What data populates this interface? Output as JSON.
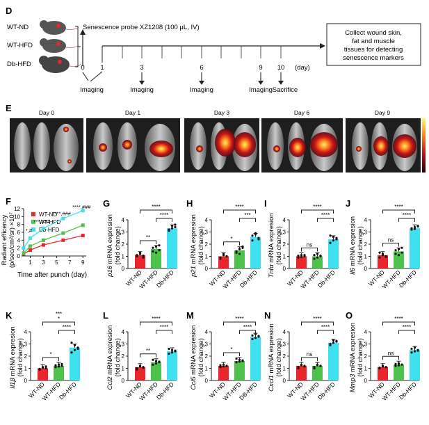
{
  "panel_d": {
    "letter": "D",
    "groups": [
      "WT-ND",
      "WT-HFD",
      "Db-HFD"
    ],
    "probe": "Senescence probe XZ1208 (100 μL, IV)",
    "days": [
      "0",
      "1",
      "3",
      "6",
      "9",
      "10"
    ],
    "day_unit": "(day)",
    "imaging": "Imaging",
    "sacrifice": "Sacrifice",
    "collect_lines": [
      "Collect wound skin,",
      "fat   and   muscle",
      "tissues for detecting",
      "senescence markers"
    ]
  },
  "panel_e": {
    "letter": "E",
    "day_labels": [
      "Day 0",
      "Day 1",
      "Day 3",
      "Day 6",
      "Day 9"
    ]
  },
  "panel_f": {
    "letter": "F",
    "ylabel_1": "Radiant efficency",
    "ylabel_2": "(p/sec/cm²/sr) ×10⁷",
    "xlabel": "Time after punch (day)",
    "legend": [
      "WT-ND",
      "WT-HFD",
      "Db-HFD"
    ],
    "colors": [
      "#e8262b",
      "#4ec24a",
      "#3fe0f0"
    ],
    "sig": [
      "*,#",
      "***,###",
      "****,###",
      "****,###"
    ]
  },
  "chart_data": [
    {
      "type": "line",
      "panel": "F",
      "x": [
        0,
        1,
        3,
        6,
        9
      ],
      "series": [
        {
          "name": "WT-ND",
          "values": [
            0.5,
            1.5,
            2.8,
            4.0,
            5.2
          ]
        },
        {
          "name": "WT-HFD",
          "values": [
            0.7,
            2.5,
            4.0,
            5.8,
            7.8
          ]
        },
        {
          "name": "Db-HFD",
          "values": [
            2.0,
            4.5,
            7.0,
            9.5,
            11.5
          ]
        }
      ],
      "xticks": [
        "1",
        "3",
        "5",
        "7",
        "9"
      ],
      "yticks": [
        "0",
        "2",
        "4",
        "6",
        "8",
        "10",
        "12"
      ],
      "ylim": [
        0,
        12
      ],
      "xlim": [
        0,
        9.5
      ],
      "xlabel": "Time after punch (day)",
      "ylabel": "Radiant efficency (p/sec/cm²/sr) ×10⁷"
    },
    {
      "type": "bar",
      "panel": "G",
      "gene": "p16",
      "categories": [
        "WT-ND",
        "WT-HFD",
        "Db-HFD"
      ],
      "values": [
        1.1,
        1.6,
        3.3
      ],
      "points": [
        [
          1.0,
          1.2,
          0.9,
          1.1,
          1.3,
          1.05
        ],
        [
          1.4,
          1.8,
          1.5,
          1.7,
          1.3,
          1.9
        ],
        [
          3.1,
          3.5,
          3.6,
          3.2,
          3.3,
          3.4
        ]
      ],
      "sig": [
        "**",
        "****",
        "****"
      ],
      "ylim": [
        0,
        4
      ]
    },
    {
      "type": "bar",
      "panel": "H",
      "gene": "p21",
      "categories": [
        "WT-ND",
        "WT-HFD",
        "Db-HFD"
      ],
      "values": [
        1.0,
        1.5,
        2.6
      ],
      "points": [
        [
          0.9,
          1.1,
          1.0,
          0.8,
          1.2,
          1.0
        ],
        [
          1.3,
          1.6,
          1.8,
          1.4,
          1.2,
          1.7
        ],
        [
          2.3,
          2.9,
          2.5,
          2.7,
          2.8,
          2.4
        ]
      ],
      "sig": [
        "*",
        "****",
        "***"
      ],
      "ylim": [
        0,
        4
      ]
    },
    {
      "type": "bar",
      "panel": "I",
      "gene": "Tnfα",
      "categories": [
        "WT-ND",
        "WT-HFD",
        "Db-HFD"
      ],
      "values": [
        1.0,
        1.0,
        2.4
      ],
      "points": [
        [
          0.9,
          1.1,
          1.0,
          1.05,
          0.95,
          1.1
        ],
        [
          0.8,
          1.2,
          1.0,
          1.1,
          0.9,
          1.05
        ],
        [
          2.1,
          2.6,
          2.4,
          2.7,
          2.3,
          2.5
        ]
      ],
      "sig": [
        "ns",
        "****",
        "****"
      ],
      "ylim": [
        0,
        4
      ]
    },
    {
      "type": "bar",
      "panel": "J",
      "gene": "Il6",
      "categories": [
        "WT-ND",
        "WT-HFD",
        "Db-HFD"
      ],
      "values": [
        1.1,
        1.4,
        3.3
      ],
      "points": [
        [
          0.9,
          1.2,
          1.0,
          1.3,
          1.1,
          0.95
        ],
        [
          1.2,
          1.6,
          1.3,
          1.5,
          1.1,
          1.7
        ],
        [
          3.2,
          3.4,
          3.5,
          3.3,
          3.25,
          3.45
        ]
      ],
      "sig": [
        "ns",
        "****",
        "****"
      ],
      "ylim": [
        0,
        4
      ]
    },
    {
      "type": "bar",
      "panel": "K",
      "gene": "Il1β",
      "categories": [
        "WT-ND",
        "WT-HFD",
        "Db-HFD"
      ],
      "values": [
        1.0,
        1.2,
        2.7
      ],
      "points": [
        [
          0.9,
          1.1,
          1.0,
          0.95,
          1.05,
          1.15
        ],
        [
          1.1,
          1.3,
          1.2,
          1.25,
          1.15,
          1.35
        ],
        [
          2.3,
          2.9,
          2.7,
          3.1,
          2.5,
          2.6
        ]
      ],
      "sig": [
        "*",
        "***\n*",
        "****"
      ],
      "ylim": [
        0,
        4
      ]
    },
    {
      "type": "bar",
      "panel": "L",
      "gene": "Ccl2",
      "categories": [
        "WT-ND",
        "WT-HFD",
        "Db-HFD"
      ],
      "values": [
        1.1,
        1.5,
        2.4
      ],
      "points": [
        [
          1.0,
          1.2,
          1.1,
          0.9,
          1.15,
          1.05
        ],
        [
          1.3,
          1.6,
          1.5,
          1.7,
          1.4,
          1.55
        ],
        [
          2.2,
          2.5,
          2.4,
          2.6,
          2.3,
          2.45
        ]
      ],
      "sig": [
        "**",
        "****",
        "****"
      ],
      "ylim": [
        0,
        4
      ]
    },
    {
      "type": "bar",
      "panel": "M",
      "gene": "Ccl5",
      "categories": [
        "WT-ND",
        "WT-HFD",
        "DB-HFD"
      ],
      "values": [
        1.2,
        1.6,
        3.6
      ],
      "points": [
        [
          1.1,
          1.3,
          1.2,
          1.25,
          1.15,
          1.2
        ],
        [
          1.5,
          1.7,
          1.6,
          1.8,
          1.55,
          1.65
        ],
        [
          3.4,
          3.8,
          3.6,
          3.7,
          3.5,
          3.65
        ]
      ],
      "sig": [
        "*",
        "****",
        "****"
      ],
      "ylim": [
        0,
        4
      ]
    },
    {
      "type": "bar",
      "panel": "N",
      "gene": "Cxcl1",
      "categories": [
        "WT-ND",
        "WT-HFD",
        "Db-HFD"
      ],
      "values": [
        1.2,
        1.2,
        3.1
      ],
      "points": [
        [
          1.0,
          1.3,
          1.2,
          1.1,
          1.25,
          1.15
        ],
        [
          1.0,
          1.3,
          1.2,
          1.1,
          1.25,
          1.2
        ],
        [
          2.9,
          3.3,
          3.2,
          3.0,
          3.1,
          3.25
        ]
      ],
      "sig": [
        "ns",
        "****",
        "****"
      ],
      "ylim": [
        0,
        4
      ]
    },
    {
      "type": "bar",
      "panel": "O",
      "gene": "Mmp3",
      "categories": [
        "WT-ND",
        "WT-HFD",
        "Db-HFD"
      ],
      "values": [
        1.1,
        1.3,
        2.5
      ],
      "points": [
        [
          1.0,
          1.2,
          1.1,
          1.05,
          1.15,
          1.1
        ],
        [
          1.2,
          1.4,
          1.3,
          1.35,
          1.25,
          1.3
        ],
        [
          2.3,
          2.7,
          2.5,
          2.6,
          2.4,
          2.45
        ]
      ],
      "sig": [
        "ns",
        "****",
        "****"
      ],
      "ylim": [
        0,
        4
      ]
    }
  ],
  "bar_panel_text": {
    "ylabel_suffix": " mRNA expresion",
    "ylabel_2": "(fold change)",
    "colors": [
      "#e8262b",
      "#4ec24a",
      "#3fe0f0"
    ]
  }
}
